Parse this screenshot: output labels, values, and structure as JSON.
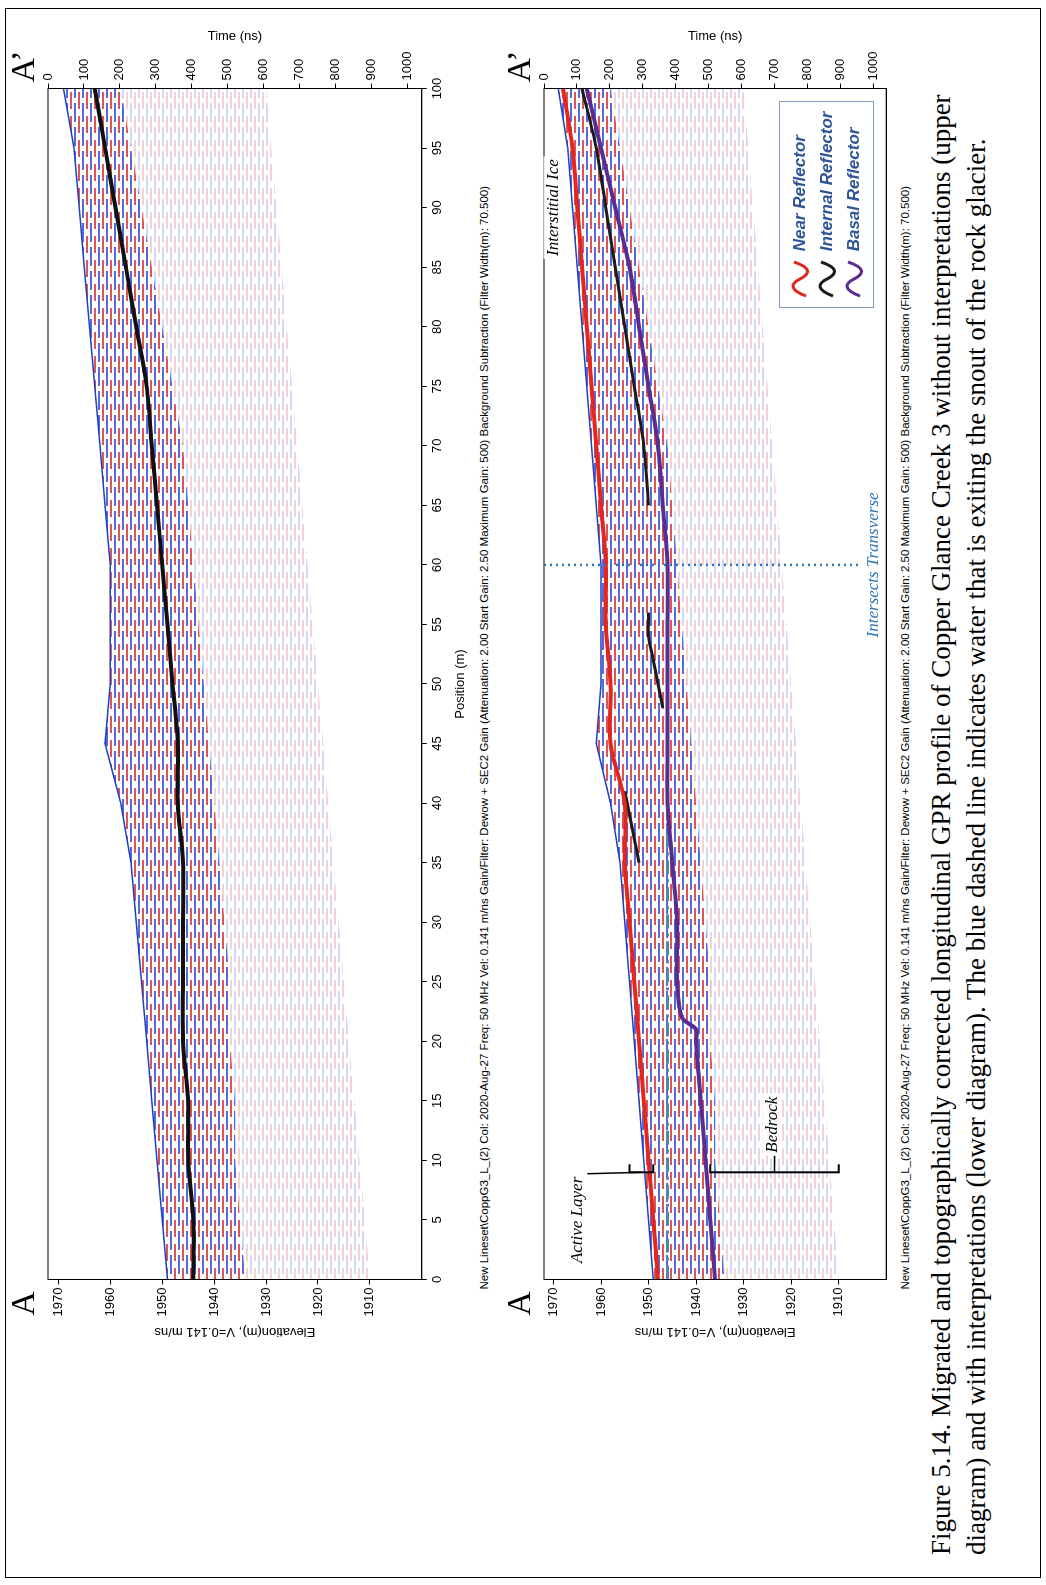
{
  "chart_data": [
    {
      "type": "line",
      "x_label": "Position (m)",
      "y_label": "Elevation(m), V=0.141 m/ns",
      "y2_label": "Time (ns)",
      "info": "New Lineset\\CoppG3_L_(2) Col: 2020-Aug-27 Freq: 50 MHz Vel: 0.141 m/ns Gain/Filter: Dewow + SEC2 Gain (Attenuation: 2.00 Start Gain: 2.50 Maximum Gain: 500) Background Subtraction (Filter Width(m): 70.500)",
      "xlim": [
        0,
        100
      ],
      "xticks": [
        0,
        5,
        10,
        15,
        20,
        25,
        30,
        35,
        40,
        45,
        50,
        55,
        60,
        65,
        70,
        75,
        80,
        85,
        90,
        95,
        100
      ],
      "ylim": [
        1900,
        1972
      ],
      "yticks": [
        1910,
        1920,
        1930,
        1940,
        1950,
        1960,
        1970
      ],
      "y2lim": [
        0,
        1040
      ],
      "y2ticks": [
        0,
        100,
        200,
        300,
        400,
        500,
        600,
        700,
        800,
        900,
        1000
      ],
      "grid": false,
      "radargram": {
        "x": [
          0,
          5,
          10,
          15,
          20,
          25,
          30,
          35,
          40,
          45,
          50,
          55,
          60,
          65,
          70,
          75,
          80,
          85,
          90,
          95,
          100
        ],
        "top": [
          1949,
          1950,
          1951,
          1952,
          1953,
          1954,
          1955,
          1956,
          1958,
          1961,
          1960,
          1960,
          1960,
          1961,
          1962,
          1963,
          1964,
          1965,
          1966,
          1967,
          1969
        ],
        "strong_bottom": [
          1934,
          1935,
          1936,
          1936,
          1937,
          1937,
          1938,
          1939,
          1940,
          1941,
          1942,
          1943,
          1944,
          1945,
          1946,
          1948,
          1950,
          1952,
          1954,
          1956,
          1958
        ],
        "faint_bottom": [
          1910,
          1911,
          1912,
          1913,
          1914,
          1915,
          1916,
          1917,
          1918,
          1919,
          1920,
          1921,
          1922,
          1923,
          1924,
          1925,
          1926,
          1927,
          1928,
          1929,
          1930
        ]
      },
      "series": [
        {
          "color": "#111111",
          "x": [
            0,
            5,
            10,
            15,
            20,
            25,
            30,
            35,
            40,
            45,
            50,
            55,
            60,
            65,
            70,
            75,
            80,
            85,
            90,
            95,
            100
          ],
          "values": [
            1944,
            1944,
            1945,
            1945,
            1946,
            1946,
            1946,
            1946,
            1947,
            1947,
            1948,
            1949,
            1950,
            1951,
            1952,
            1953,
            1955,
            1957,
            1959,
            1961,
            1963
          ]
        }
      ]
    },
    {
      "type": "line",
      "y_label": "Elevation(m), V=0.141 m/ns",
      "y2_label": "Time (ns)",
      "info": "New Lineset\\CoppG3_L_(2) Col: 2020-Aug-27 Freq: 50 MHz Vel: 0.141 m/ns Gain/Filter: Dewow + SEC2 Gain (Attenuation: 2.00 Start Gain: 2.50 Maximum Gain: 500) Background Subtraction (Filter Width(m): 70.500)",
      "xlim": [
        0,
        100
      ],
      "ylim": [
        1900,
        1972
      ],
      "yticks": [
        1910,
        1920,
        1930,
        1940,
        1950,
        1960,
        1970
      ],
      "y2lim": [
        0,
        1040
      ],
      "y2ticks": [
        0,
        100,
        200,
        300,
        400,
        500,
        600,
        700,
        800,
        900,
        1000
      ],
      "grid": false,
      "legend": "lower right",
      "radargram": {
        "x": [
          0,
          5,
          10,
          15,
          20,
          25,
          30,
          35,
          40,
          45,
          50,
          55,
          60,
          65,
          70,
          75,
          80,
          85,
          90,
          95,
          100
        ],
        "top": [
          1949,
          1950,
          1951,
          1952,
          1953,
          1954,
          1955,
          1956,
          1958,
          1961,
          1960,
          1960,
          1960,
          1961,
          1962,
          1963,
          1964,
          1965,
          1966,
          1967,
          1969
        ],
        "strong_bottom": [
          1934,
          1935,
          1936,
          1936,
          1937,
          1937,
          1938,
          1939,
          1940,
          1941,
          1942,
          1943,
          1944,
          1945,
          1946,
          1948,
          1950,
          1952,
          1954,
          1956,
          1958
        ],
        "faint_bottom": [
          1910,
          1911,
          1912,
          1913,
          1914,
          1915,
          1916,
          1917,
          1918,
          1919,
          1920,
          1921,
          1922,
          1923,
          1924,
          1925,
          1926,
          1927,
          1928,
          1929,
          1930
        ]
      },
      "series": [
        {
          "name": "Near Reflector",
          "color": "#e3261f",
          "x": [
            0,
            5,
            10,
            15,
            20,
            25,
            30,
            35,
            40,
            45,
            50,
            55,
            60,
            65,
            70,
            75,
            80,
            85,
            90,
            95,
            100
          ],
          "values": [
            1948,
            1949,
            1950,
            1951,
            1952,
            1953,
            1954,
            1955,
            1955,
            1958,
            1958,
            1959,
            1959,
            1960,
            1961,
            1962,
            1963,
            1964,
            1965,
            1966,
            1968
          ]
        },
        {
          "name": "Internal Reflector",
          "color": "#1c1c1c",
          "x": [
            35,
            37,
            39,
            41,
            45,
            48,
            50,
            52,
            54,
            56,
            60,
            65,
            70,
            75,
            80,
            85,
            90,
            95,
            100
          ],
          "values": [
            1952,
            1953,
            1954,
            1955,
            null,
            1947,
            1948,
            1949,
            1950,
            1950,
            null,
            1950,
            1951,
            1953,
            1955,
            1957,
            1959,
            1961,
            1964
          ]
        },
        {
          "name": "Basal Reflector",
          "color": "#5a2d91",
          "x": [
            0,
            5,
            10,
            15,
            20,
            21,
            22,
            25,
            30,
            35,
            40,
            45,
            50,
            55,
            60,
            65,
            70,
            75,
            80,
            85,
            90,
            95,
            100
          ],
          "values": [
            1936,
            1937,
            1938,
            1939,
            1940,
            1940,
            1943,
            1944,
            1944,
            1945,
            1946,
            1946,
            1946,
            1946,
            1946,
            1947,
            1948,
            1950,
            1952,
            1954,
            1957,
            1960,
            1963
          ]
        },
        {
          "color": "#4a8ca8",
          "line_style": "dashdot",
          "x": [
            0,
            40
          ],
          "values": [
            1946,
            1946
          ]
        }
      ],
      "annotations": [
        {
          "text": "Active Layer",
          "x": 5,
          "y": 1965,
          "bracket": {
            "x": 9,
            "from": 1949,
            "to": 1954
          }
        },
        {
          "text": "Bedrock",
          "x": 13,
          "y": 1924,
          "bracket": {
            "x": 9,
            "from": 1937,
            "to": 1910
          }
        },
        {
          "text": "Interstitial Ice",
          "x": 90,
          "y": 1970
        }
      ],
      "vlines": [
        {
          "x": 60,
          "label": "Intersects Transverse",
          "color": "#2e75b6",
          "line_style": "dotted"
        }
      ]
    }
  ],
  "endpoints": [
    "A",
    "A’"
  ],
  "caption": "Figure 5.14. Migrated and topographically corrected longitudinal GPR profile of Copper Glance Creek 3 without interpretations (upper diagram) and with interpretations (lower diagram). The blue dashed line indicates water that is exiting the snout of the rock glacier."
}
